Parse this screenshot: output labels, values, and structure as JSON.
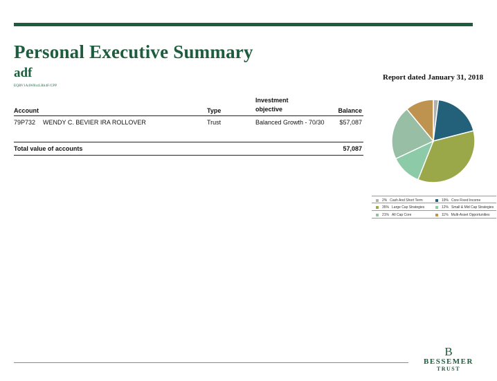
{
  "page": {
    "title": "Personal Executive Summary",
    "subtitle": "adf",
    "tiny_id": "EQRV1A4WRxtLRb4F/CPP"
  },
  "accounts_table": {
    "headers": {
      "account": "Account",
      "type": "Type",
      "objective": "Investment objective",
      "balance": "Balance"
    },
    "rows": [
      {
        "number": "79P732",
        "name": "WENDY C. BEVIER IRA ROLLOVER",
        "type": "Trust",
        "objective": "Balanced Growth - 70/30",
        "balance": "$57,087"
      }
    ],
    "total": {
      "label": "Total value of accounts",
      "value": "57,087"
    }
  },
  "report": {
    "date_label": "Report dated January 31, 2018"
  },
  "chart_data": {
    "type": "pie",
    "slices": [
      {
        "label": "Cash And Short Term",
        "pct_label": "2%",
        "value": 2,
        "color": "#b0b0b0"
      },
      {
        "label": "Core Fixed Income",
        "pct_label": "19%",
        "value": 19,
        "color": "#23607a"
      },
      {
        "label": "Large Cap Strategies",
        "pct_label": "35%",
        "value": 35,
        "color": "#9aa84a"
      },
      {
        "label": "Small & Mid Cap Strategies",
        "pct_label": "12%",
        "value": 12,
        "color": "#8ccaa8"
      },
      {
        "label": "All Cap Core",
        "pct_label": "21%",
        "value": 21,
        "color": "#98bfa6"
      },
      {
        "label": "Multi-Asset Opportunities",
        "pct_label": "11%",
        "value": 11,
        "color": "#be9350"
      }
    ],
    "legend_placement": "below"
  },
  "logo": {
    "letter": "B",
    "line1": "BESSEMER",
    "line2": "TRUST"
  }
}
